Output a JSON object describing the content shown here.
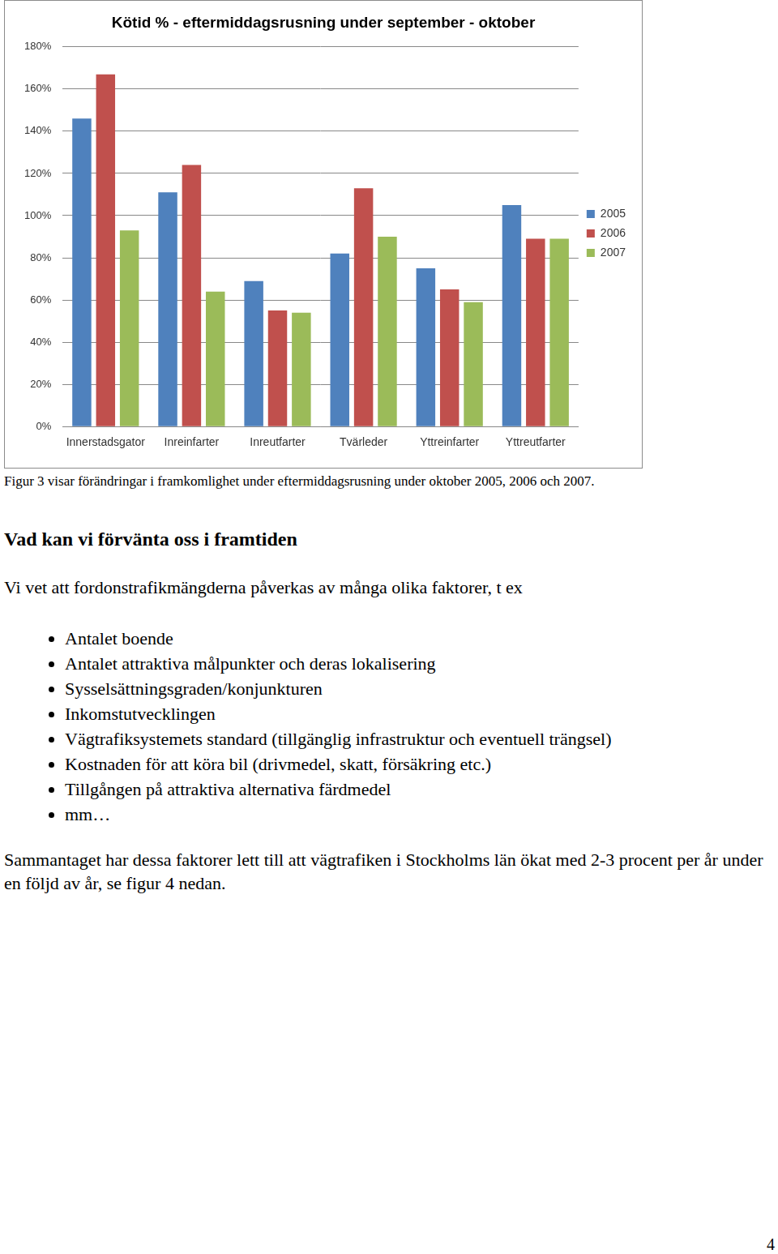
{
  "chart_data": {
    "type": "bar",
    "title": "Kötid % - eftermiddagsrusning under september - oktober",
    "categories": [
      "Innerstadsgator",
      "Inreinfarter",
      "Inreutfarter",
      "Tvärleder",
      "Yttreinfarter",
      "Yttreutfarter"
    ],
    "series": [
      {
        "name": "2005",
        "color": "#4f81bd",
        "values": [
          146,
          111,
          69,
          82,
          75,
          105
        ]
      },
      {
        "name": "2006",
        "color": "#c0504d",
        "values": [
          167,
          124,
          55,
          113,
          65,
          89
        ]
      },
      {
        "name": "2007",
        "color": "#9bbb59",
        "values": [
          93,
          64,
          54,
          90,
          59,
          89
        ]
      }
    ],
    "ylim": [
      0,
      180
    ],
    "yticks": [
      {
        "value": 0,
        "label": "0%"
      },
      {
        "value": 20,
        "label": "20%"
      },
      {
        "value": 40,
        "label": "40%"
      },
      {
        "value": 60,
        "label": "60%"
      },
      {
        "value": 80,
        "label": "80%"
      },
      {
        "value": 100,
        "label": "100%"
      },
      {
        "value": 120,
        "label": "120%"
      },
      {
        "value": 140,
        "label": "140%"
      },
      {
        "value": 160,
        "label": "160%"
      },
      {
        "value": 180,
        "label": "180%"
      }
    ],
    "grid": true,
    "legend": "right"
  },
  "caption": "Figur 3 visar förändringar i framkomlighet under eftermiddagsrusning under oktober 2005, 2006 och 2007.",
  "heading": "Vad kan vi förvänta oss i framtiden",
  "intro": "Vi vet att fordonstrafikmängderna påverkas av många olika faktorer, t ex",
  "bullets": [
    "Antalet boende",
    "Antalet attraktiva målpunkter och deras lokalisering",
    "Sysselsättningsgraden/konjunkturen",
    "Inkomstutvecklingen",
    "Vägtrafiksystemets standard (tillgänglig infrastruktur och eventuell trängsel)",
    "Kostnaden för att köra bil (drivmedel, skatt, försäkring etc.)",
    "Tillgången på attraktiva alternativa färdmedel",
    "mm…"
  ],
  "conclusion": "Sammantaget har dessa faktorer lett till att vägtrafiken i Stockholms län ökat med 2-3 procent per år under en följd av år, se figur 4 nedan.",
  "page_number": "4"
}
